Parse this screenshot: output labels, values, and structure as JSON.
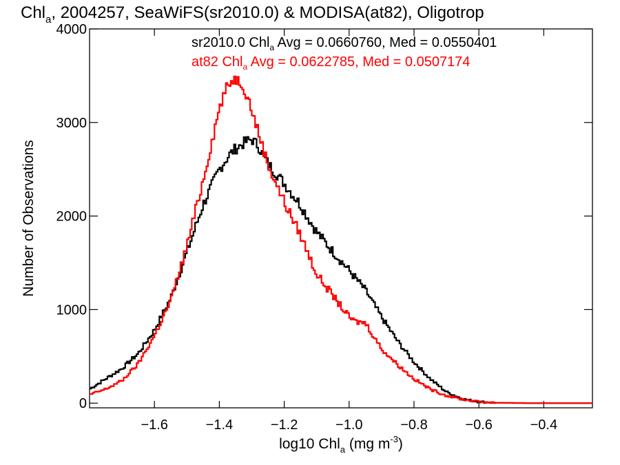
{
  "chart_data": {
    "type": "line",
    "title": {
      "part1": "Chl",
      "sub": "a",
      "part2": ", 2004257, SeaWiFS(sr2010.0) & MODISA(at82), Oligotrop"
    },
    "xlabel": {
      "part1": "log10 Chl",
      "sub": "a",
      "part2": " (mg m",
      "sup": "-3",
      "part3": ")"
    },
    "ylabel": "Number of Observations",
    "xlim": [
      -1.8,
      -0.25
    ],
    "ylim": [
      -50,
      4000
    ],
    "x_ticks": [
      -1.6,
      -1.4,
      -1.2,
      -1.0,
      -0.8,
      -0.6,
      -0.4
    ],
    "x_tick_labels": [
      "−1.6",
      "−1.4",
      "−1.2",
      "−1.0",
      "−0.8",
      "−0.6",
      "−0.4"
    ],
    "y_ticks": [
      0,
      1000,
      2000,
      3000,
      4000
    ],
    "y_tick_labels": [
      "0",
      "1000",
      "2000",
      "3000",
      "4000"
    ],
    "legend": [
      {
        "series": "sr2010.0",
        "part1": "sr2010.0 Chl",
        "sub": "a",
        "part2": " Avg = 0.0660760, Med = 0.0550401",
        "color": "#000000"
      },
      {
        "series": "at82",
        "part1": "at82 Chl",
        "sub": "a",
        "part2": " Avg = 0.0622785, Med = 0.0507174",
        "color": "#ff0000"
      }
    ],
    "series": [
      {
        "label": "sr2010.0",
        "color": "#000000",
        "x": [
          -1.8,
          -1.75,
          -1.7,
          -1.65,
          -1.6,
          -1.55,
          -1.5,
          -1.45,
          -1.4,
          -1.37,
          -1.35,
          -1.32,
          -1.3,
          -1.28,
          -1.25,
          -1.2,
          -1.15,
          -1.1,
          -1.05,
          -1.0,
          -0.95,
          -0.9,
          -0.85,
          -0.8,
          -0.75,
          -0.7,
          -0.65,
          -0.6,
          -0.55,
          -0.5,
          -0.45,
          -0.4,
          -0.35,
          -0.3,
          -0.25
        ],
        "y": [
          150,
          260,
          370,
          530,
          780,
          1120,
          1610,
          2120,
          2500,
          2650,
          2720,
          2790,
          2820,
          2750,
          2560,
          2350,
          2120,
          1830,
          1620,
          1420,
          1210,
          920,
          660,
          440,
          260,
          120,
          45,
          15,
          5,
          2,
          1,
          1,
          1,
          1,
          1
        ]
      },
      {
        "label": "at82",
        "color": "#ff0000",
        "x": [
          -1.8,
          -1.75,
          -1.7,
          -1.65,
          -1.6,
          -1.55,
          -1.5,
          -1.45,
          -1.4,
          -1.38,
          -1.36,
          -1.35,
          -1.33,
          -1.31,
          -1.28,
          -1.25,
          -1.2,
          -1.15,
          -1.1,
          -1.05,
          -1.0,
          -0.98,
          -0.95,
          -0.9,
          -0.85,
          -0.8,
          -0.75,
          -0.7,
          -0.65,
          -0.6,
          -0.55,
          -0.5,
          -0.45,
          -0.4,
          -0.35,
          -0.3,
          -0.25
        ],
        "y": [
          90,
          150,
          240,
          420,
          720,
          1090,
          1680,
          2380,
          3150,
          3350,
          3460,
          3470,
          3420,
          3250,
          2900,
          2550,
          2150,
          1800,
          1380,
          1150,
          920,
          870,
          860,
          580,
          410,
          260,
          150,
          80,
          40,
          15,
          5,
          2,
          1,
          1,
          1,
          1,
          1
        ]
      }
    ],
    "grid": false
  }
}
